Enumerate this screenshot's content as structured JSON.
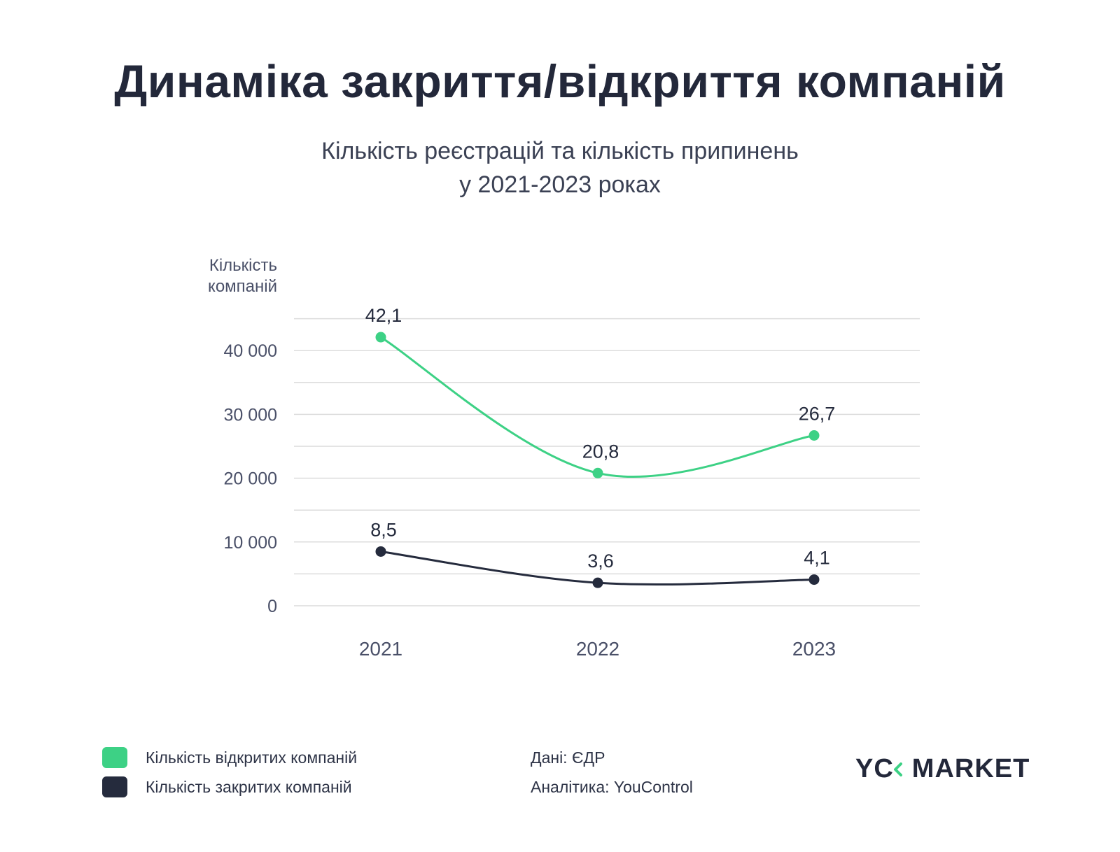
{
  "title": "Динаміка закриття/відкриття компаній",
  "subtitle_line1": "Кількість реєстрацій та кількість припинень",
  "subtitle_line2": "у 2021-2023 роках",
  "colors": {
    "opened": "#3dd185",
    "closed": "#252b3d",
    "grid": "#dcdcdc",
    "axis_text": "#4a5068"
  },
  "chart_data": {
    "type": "line",
    "ylabel_line1": "Кількість",
    "ylabel_line2": "компаній",
    "categories": [
      "2021",
      "2022",
      "2023"
    ],
    "ylim": [
      0,
      45000
    ],
    "yticks": [
      0,
      10000,
      20000,
      30000,
      40000
    ],
    "ytick_labels": [
      "0",
      "10 000",
      "20 000",
      "30 000",
      "40 000"
    ],
    "grid": true,
    "series": [
      {
        "name": "Кількість відкритих компаній",
        "color": "#3dd185",
        "values": [
          42100,
          20800,
          26700
        ],
        "labels": [
          "42,1",
          "20,8",
          "26,7"
        ]
      },
      {
        "name": "Кількість закритих компаній",
        "color": "#252b3d",
        "values": [
          8500,
          3600,
          4100
        ],
        "labels": [
          "8,5",
          "3,6",
          "4,1"
        ]
      }
    ]
  },
  "legend": [
    {
      "label": "Кількість відкритих компаній",
      "color": "#3dd185"
    },
    {
      "label": "Кількість закритих компаній",
      "color": "#252b3d"
    }
  ],
  "sources": {
    "data": "Дані: ЄДР",
    "analytics": "Аналітика: YouControl"
  },
  "logo": {
    "yc": "YC",
    "market": "MARKET",
    "icon": "chevron-left-icon"
  }
}
